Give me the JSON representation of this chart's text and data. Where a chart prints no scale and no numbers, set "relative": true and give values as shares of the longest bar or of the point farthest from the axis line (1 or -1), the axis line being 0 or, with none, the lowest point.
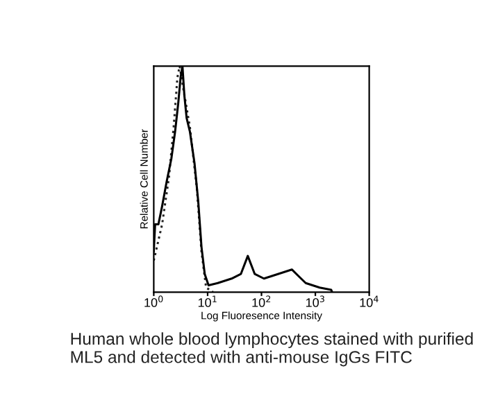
{
  "chart_data": {
    "type": "line",
    "relative": true,
    "xlabel": "Log Fluoresence Intensity",
    "ylabel": "Relative Cell Number",
    "annotations": [
      "Human whole blood lymphocytes stained with purified ML5 and detected with anti-mouse IgGs FITC"
    ],
    "log": "x",
    "xlim": [
      1,
      10000
    ],
    "xticks": [
      {
        "value": 1,
        "label": "10$^{0}$"
      },
      {
        "value": 10,
        "label": "10$^{1}$"
      },
      {
        "value": 100,
        "label": "10$^{2}$"
      },
      {
        "value": 1000,
        "label": "10$^{3}$"
      },
      {
        "value": 10000,
        "label": "10$^{4}$"
      }
    ],
    "tick_labels": "x",
    "grid": false,
    "legend": false,
    "series": [
      {
        "color": "#222222",
        "line_style": "dotted",
        "x": [
          1.0,
          1.43,
          1.92,
          2.34,
          2.75,
          3.03,
          3.48,
          4.69,
          6.31,
          7.69,
          9.38,
          12.6
        ],
        "values": [
          0.14,
          0.3,
          0.51,
          0.73,
          0.95,
          1.0,
          0.91,
          0.73,
          0.46,
          0.18,
          0.02,
          0
        ]
      },
      {
        "color": "#000000",
        "line_style": "solid",
        "x": [
          1.0,
          1.06,
          1.22,
          1.43,
          1.74,
          2.12,
          2.49,
          2.86,
          3.15,
          3.41,
          3.7,
          4.08,
          4.69,
          5.71,
          6.7,
          7.69,
          8.84,
          10.4,
          15.4,
          27.9,
          41.4,
          55.7,
          75.0,
          111,
          202,
          366,
          492,
          663,
          1200,
          1970,
          2050
        ],
        "values": [
          0.18,
          0.3,
          0.3,
          0.38,
          0.49,
          0.59,
          0.71,
          0.84,
          0.95,
          1.0,
          0.87,
          0.77,
          0.71,
          0.57,
          0.4,
          0.2,
          0.08,
          0.03,
          0.04,
          0.06,
          0.08,
          0.16,
          0.08,
          0.06,
          0.08,
          0.1,
          0.07,
          0.04,
          0.02,
          0.01,
          0
        ]
      }
    ]
  }
}
